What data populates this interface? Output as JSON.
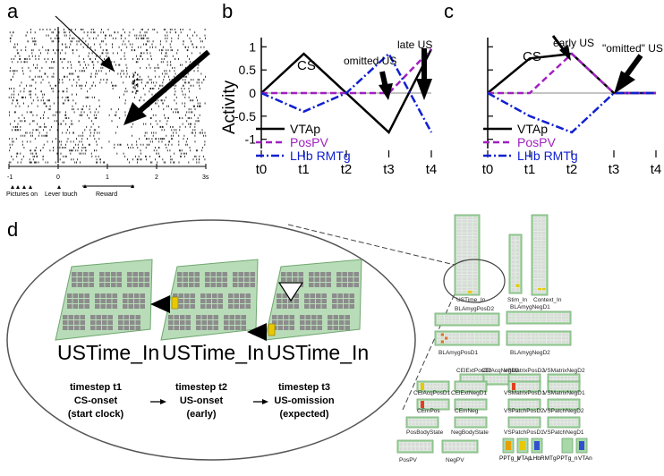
{
  "panels": {
    "a": {
      "letter": "a",
      "ticks": [
        "-1",
        "0",
        "1",
        "2",
        "3s"
      ],
      "events": [
        "Pictures on",
        "Lever touch",
        "Reward"
      ]
    },
    "b": {
      "letter": "b",
      "ylabel": "Activity",
      "yticks": [
        "1",
        "0.5",
        "0",
        "-0.5",
        "-1"
      ],
      "xticks": [
        "t0",
        "t1",
        "t2",
        "t3",
        "t4"
      ],
      "annotations": {
        "cs": "CS",
        "omitted": "omitted US",
        "late": "late US"
      },
      "legend": [
        "VTAp",
        "PosPV",
        "LHb RMTg"
      ]
    },
    "c": {
      "letter": "c",
      "xticks": [
        "t0",
        "t1",
        "t2",
        "t3",
        "t4"
      ],
      "annotations": {
        "cs": "CS",
        "early": "early US",
        "omitted": "\"omitted\" US"
      },
      "legend": [
        "VTAp",
        "PosPV",
        "LHb RMTg"
      ]
    },
    "d": {
      "letter": "d",
      "grid_labels": [
        "USTime_In",
        "USTime_In",
        "USTime_In"
      ],
      "steps": [
        {
          "l1": "timestep t1",
          "l2": "CS-onset",
          "l3": "(start clock)"
        },
        {
          "l1": "timestep t2",
          "l2": "US-onset",
          "l3": "(early)"
        },
        {
          "l1": "timestep t3",
          "l2": "US-omission",
          "l3": "(expected)"
        }
      ],
      "net_labels": [
        "USTime_In",
        "Stim_In",
        "Context_In",
        "BLAmygPosD2",
        "BLAmygNegD1",
        "BLAmygPosD1",
        "BLAmygNegD2",
        "CElExtPosD2",
        "CElAcqNegD2",
        "CElAcqPosD1",
        "CElExtNegD1",
        "CEmPos",
        "CEmNeg",
        "VSMatrixPosD2",
        "VSMatrixNegD2",
        "VSMatrixPosD1",
        "VSMatrixNegD1",
        "VSPatchPosD2",
        "VSPatchNegD2",
        "VSPatchPosD1",
        "VSPatchNegD1",
        "PosBodyState",
        "NegBodyState",
        "PosPV",
        "NegPV",
        "PPTg_p",
        "VTAp",
        "LHbRMTg",
        "PPTg_n",
        "VTAn"
      ]
    }
  },
  "chart_data": [
    {
      "type": "line",
      "title": "",
      "xlabel": "",
      "ylabel": "Activity",
      "x": [
        "t0",
        "t1",
        "t2",
        "t3",
        "t4"
      ],
      "ylim": [
        -1.2,
        1.2
      ],
      "series": [
        {
          "name": "VTAp",
          "color": "#000000",
          "dash": "solid",
          "points": [
            [
              0,
              0
            ],
            [
              1,
              0.85
            ],
            [
              2,
              0
            ],
            [
              3,
              -0.85
            ],
            [
              4,
              0.95
            ]
          ]
        },
        {
          "name": "PosPV",
          "color": "#a020c0",
          "dash": "dashed",
          "points": [
            [
              0,
              0
            ],
            [
              2,
              0
            ],
            [
              3,
              0
            ],
            [
              4,
              0.95
            ]
          ]
        },
        {
          "name": "LHb RMTg",
          "color": "#1020d0",
          "dash": "dashdot",
          "points": [
            [
              0,
              0
            ],
            [
              1,
              -0.4
            ],
            [
              2,
              0
            ],
            [
              3,
              0.85
            ],
            [
              4,
              -0.85
            ]
          ]
        }
      ]
    },
    {
      "type": "line",
      "title": "",
      "xlabel": "",
      "ylabel": "",
      "x": [
        "t0",
        "t1",
        "t2",
        "t3",
        "t4"
      ],
      "ylim": [
        -1.2,
        1.2
      ],
      "series": [
        {
          "name": "VTAp",
          "color": "#000000",
          "dash": "solid",
          "points": [
            [
              0,
              0
            ],
            [
              1,
              0.75
            ],
            [
              2,
              0.85
            ],
            [
              3,
              0
            ],
            [
              4,
              0
            ]
          ]
        },
        {
          "name": "PosPV",
          "color": "#a020c0",
          "dash": "dashed",
          "points": [
            [
              0,
              0
            ],
            [
              1,
              0
            ],
            [
              2,
              0.85
            ],
            [
              3,
              0
            ],
            [
              4,
              0
            ]
          ]
        },
        {
          "name": "LHb RMTg",
          "color": "#1020d0",
          "dash": "dashdot",
          "points": [
            [
              0,
              0
            ],
            [
              1,
              -0.5
            ],
            [
              2,
              -0.85
            ],
            [
              3,
              0
            ],
            [
              4,
              0
            ]
          ]
        }
      ]
    }
  ]
}
